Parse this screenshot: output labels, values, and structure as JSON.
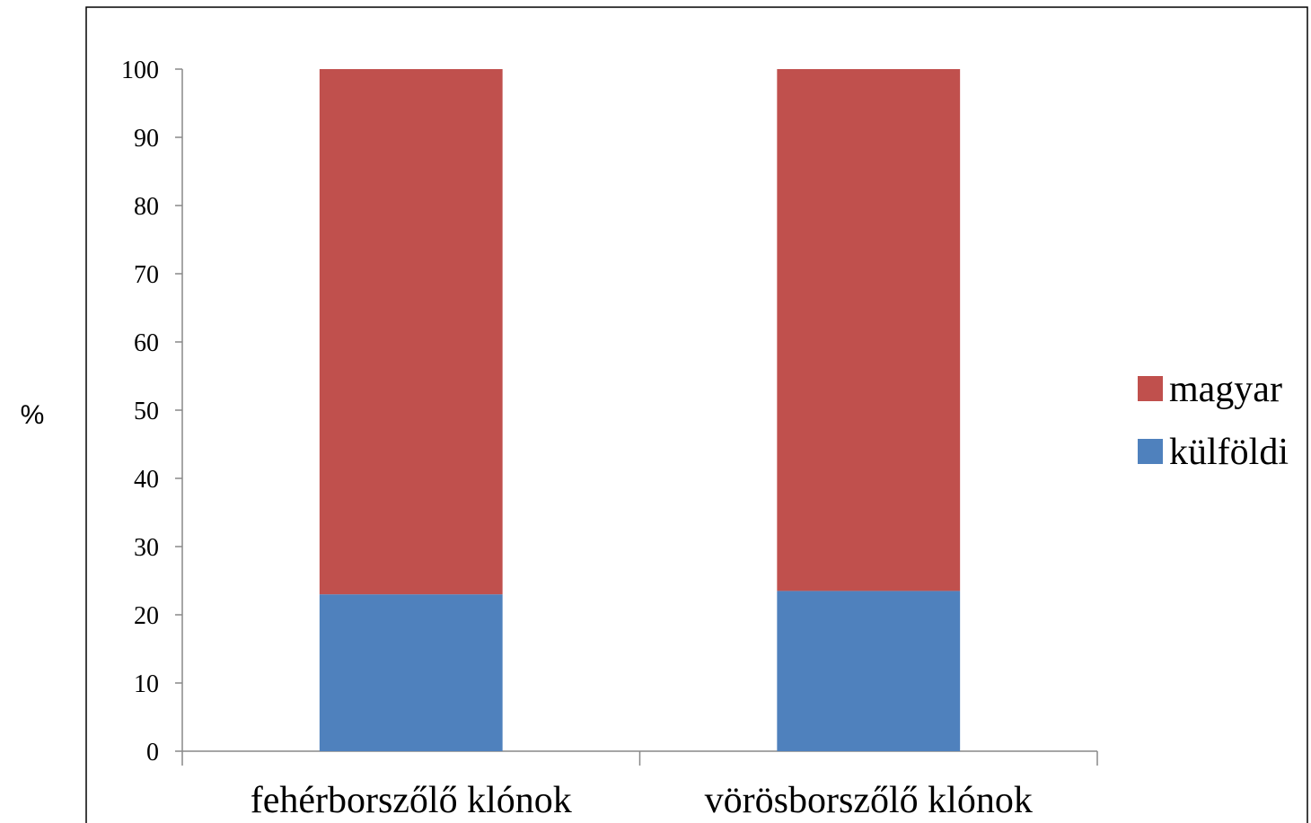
{
  "chart_data": {
    "type": "bar",
    "stacked": true,
    "categories": [
      "fehérborszőlő klónok",
      "vörösborszőlő klónok"
    ],
    "series": [
      {
        "name": "külföldi",
        "values": [
          23,
          23.5
        ],
        "color": "#4F81BD"
      },
      {
        "name": "magyar",
        "values": [
          77,
          76.5
        ],
        "color": "#C0504D"
      }
    ],
    "title": "",
    "xlabel": "",
    "ylabel": "%",
    "ylim": [
      0,
      100
    ],
    "yticks": [
      0,
      10,
      20,
      30,
      40,
      50,
      60,
      70,
      80,
      90,
      100
    ],
    "grid": false,
    "legend": {
      "position": "right",
      "order": [
        "magyar",
        "külföldi"
      ]
    }
  }
}
